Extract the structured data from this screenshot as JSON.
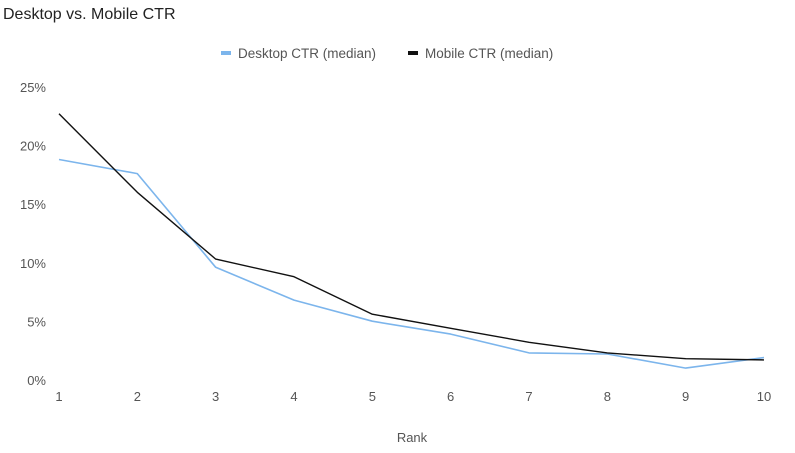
{
  "chart_data": {
    "type": "line",
    "title": "Desktop vs. Mobile CTR",
    "xlabel": "Rank",
    "ylabel": "",
    "x": [
      1,
      2,
      3,
      4,
      5,
      6,
      7,
      8,
      9,
      10
    ],
    "x_tick_labels": [
      "1",
      "2",
      "3",
      "4",
      "5",
      "6",
      "7",
      "8",
      "9",
      "10"
    ],
    "ylim": [
      0,
      25
    ],
    "y_ticks": [
      0,
      5,
      10,
      15,
      20,
      25
    ],
    "y_tick_labels": [
      "0%",
      "5%",
      "10%",
      "15%",
      "20%",
      "25%"
    ],
    "grid": false,
    "legend_position": "top-center",
    "series": [
      {
        "name": "Desktop CTR (median)",
        "color": "#7cb5ec",
        "values": [
          18.9,
          17.7,
          9.7,
          6.9,
          5.1,
          4.0,
          2.4,
          2.3,
          1.1,
          2.0
        ]
      },
      {
        "name": "Mobile CTR (median)",
        "color": "#111111",
        "values": [
          22.8,
          16.1,
          10.4,
          8.9,
          5.7,
          4.5,
          3.3,
          2.4,
          1.9,
          1.8
        ]
      }
    ]
  }
}
